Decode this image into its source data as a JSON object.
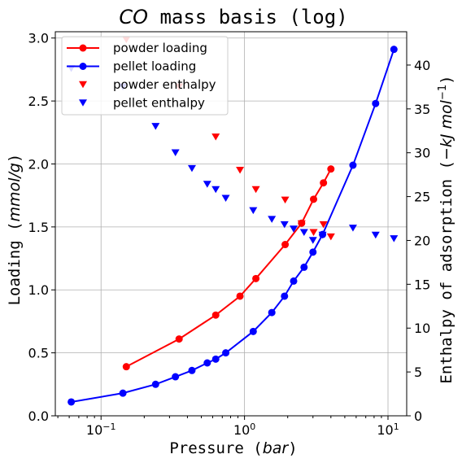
{
  "chart_data": {
    "type": "line",
    "title_main": "CO",
    "title_rest": " mass basis (log)",
    "x_label_main": "Pressure (",
    "x_label_unit": "bar",
    "x_label_close": ")",
    "y_label_main": "Loading (",
    "y_label_unit": "mmol/g",
    "y_label_close": ")",
    "y2_label_main": "Enthalpy of adsorption (",
    "y2_label_unit": "−kJ mol",
    "y2_label_exp": "−1",
    "y2_label_close": ")",
    "x_scale": "log",
    "xlim": [
      0.048,
      13.5
    ],
    "ylim": [
      0,
      3.05
    ],
    "y2lim": [
      0,
      43.8
    ],
    "grid": true,
    "legend_position": "upper-left",
    "x_ticks": [
      {
        "value": 0.1,
        "base": "10",
        "exp": "−1"
      },
      {
        "value": 1,
        "base": "10",
        "exp": "0"
      },
      {
        "value": 10,
        "base": "10",
        "exp": "1"
      }
    ],
    "y_ticks": [
      "0.0",
      "0.5",
      "1.0",
      "1.5",
      "2.0",
      "2.5",
      "3.0"
    ],
    "y2_ticks": [
      "0",
      "5",
      "10",
      "15",
      "20",
      "25",
      "30",
      "35",
      "40"
    ],
    "series": [
      {
        "name": "powder loading",
        "axis": "left",
        "style": "line-circle",
        "color": "#ff0000",
        "x": [
          0.15,
          0.35,
          0.63,
          0.93,
          1.2,
          1.92,
          2.5,
          3.03,
          3.55,
          4.0
        ],
        "y": [
          0.39,
          0.61,
          0.8,
          0.95,
          1.09,
          1.36,
          1.53,
          1.72,
          1.85,
          1.96
        ]
      },
      {
        "name": "pellet loading",
        "axis": "left",
        "style": "line-circle",
        "color": "#0000ff",
        "x": [
          0.062,
          0.142,
          0.24,
          0.33,
          0.43,
          0.55,
          0.63,
          0.74,
          1.15,
          1.55,
          1.9,
          2.2,
          2.6,
          3.0,
          3.5,
          5.7,
          8.2,
          11.0
        ],
        "y": [
          0.11,
          0.18,
          0.25,
          0.31,
          0.36,
          0.42,
          0.45,
          0.5,
          0.67,
          0.82,
          0.95,
          1.07,
          1.18,
          1.3,
          1.44,
          1.99,
          2.48,
          2.91
        ]
      },
      {
        "name": "powder enthalpy",
        "axis": "right",
        "style": "triangle-down",
        "color": "#ff0000",
        "x": [
          0.15,
          0.35,
          0.63,
          0.93,
          1.2,
          1.92,
          2.5,
          3.03,
          3.55,
          4.0
        ],
        "y": [
          42.9,
          37.5,
          31.8,
          28.0,
          25.8,
          24.6,
          21.9,
          20.9,
          21.8,
          20.4
        ]
      },
      {
        "name": "pellet enthalpy",
        "axis": "right",
        "style": "triangle-down",
        "color": "#0000ff",
        "x": [
          0.062,
          0.142,
          0.24,
          0.33,
          0.43,
          0.55,
          0.63,
          0.74,
          1.15,
          1.55,
          1.9,
          2.2,
          2.6,
          3.0,
          3.5,
          5.7,
          8.2,
          11.0
        ],
        "y": [
          39.6,
          37.5,
          33.0,
          30.0,
          28.2,
          26.4,
          25.8,
          24.8,
          23.4,
          22.4,
          21.8,
          21.3,
          20.9,
          20.0,
          20.6,
          21.4,
          20.6,
          20.2
        ]
      }
    ]
  }
}
